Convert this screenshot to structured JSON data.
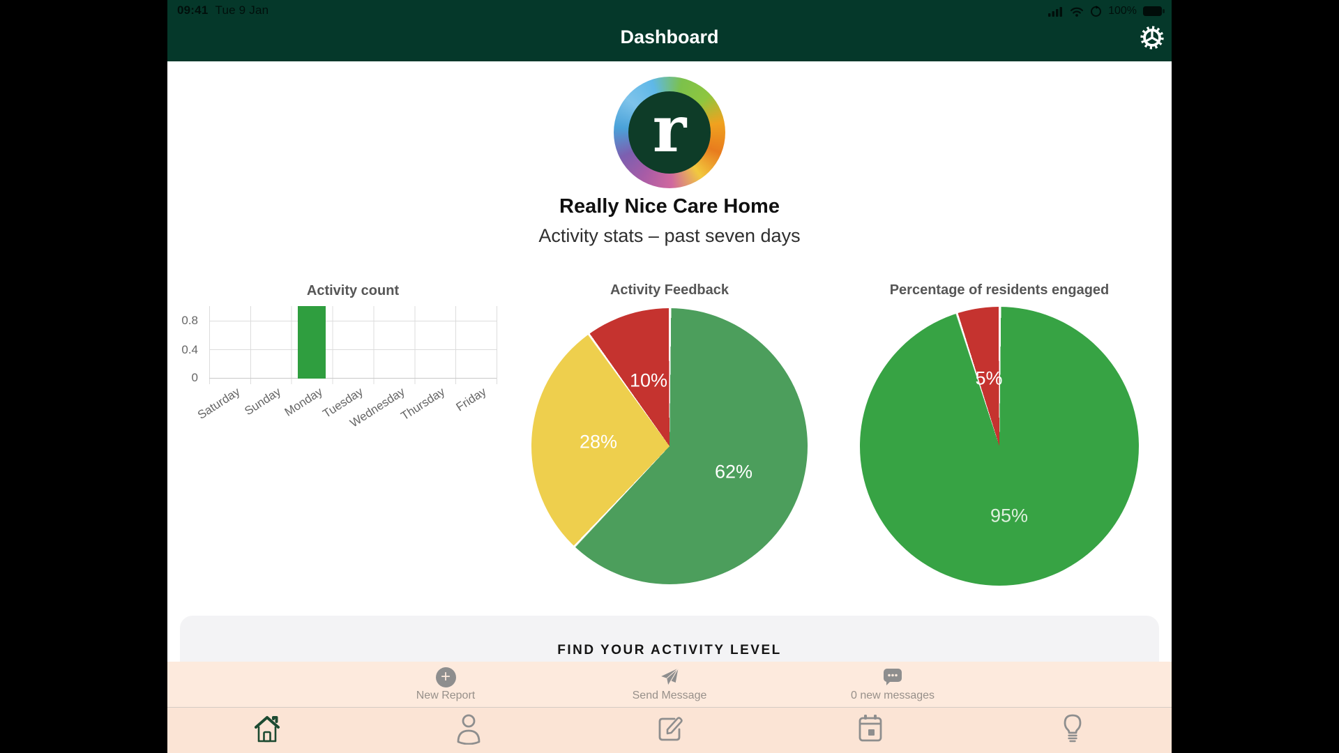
{
  "status_bar": {
    "time": "09:41",
    "date": "Tue 9 Jan",
    "battery_percent": "100%",
    "icons": [
      "cellular-signal-icon",
      "wifi-icon",
      "orientation-lock-icon",
      "battery-icon"
    ]
  },
  "header": {
    "title": "Dashboard",
    "settings_icon": "gear-icon"
  },
  "brand": {
    "logo_letter": "r",
    "name": "Really Nice Care Home",
    "subtitle": "Activity stats – past seven days"
  },
  "chart_data": [
    {
      "type": "bar",
      "title": "Activity count",
      "categories": [
        "Saturday",
        "Sunday",
        "Monday",
        "Tuesday",
        "Wednesday",
        "Thursday",
        "Friday"
      ],
      "values": [
        0,
        0,
        1,
        0,
        0,
        0,
        0
      ],
      "ylim": [
        0,
        1
      ],
      "yticks": [
        "0",
        "0.4",
        "0.8"
      ],
      "bar_color": "#2f9e3f",
      "grid": true,
      "xlabel": "",
      "ylabel": ""
    },
    {
      "type": "pie",
      "title": "Activity Feedback",
      "slices": [
        {
          "label": "62%",
          "value": 62,
          "color": "#4c9e5c"
        },
        {
          "label": "28%",
          "value": 28,
          "color": "#eecf4d"
        },
        {
          "label": "10%",
          "value": 10,
          "color": "#c5332f"
        }
      ],
      "start_angle_deg": 0,
      "direction": "clockwise"
    },
    {
      "type": "pie",
      "title": "Percentage of residents engaged",
      "slices": [
        {
          "label": "95%",
          "value": 95,
          "color": "#37a344"
        },
        {
          "label": "5%",
          "value": 5,
          "color": "#c5332f"
        }
      ],
      "start_angle_deg": 0,
      "direction": "clockwise"
    }
  ],
  "section": {
    "title": "FIND YOUR ACTIVITY LEVEL"
  },
  "action_bar": {
    "items": [
      {
        "label": "New Report",
        "icon": "plus-circle-icon"
      },
      {
        "label": "Send Message",
        "icon": "paper-plane-icon"
      },
      {
        "label": "0 new messages",
        "icon": "message-bubble-icon"
      }
    ]
  },
  "tab_bar": {
    "items": [
      {
        "icon": "home-icon",
        "active": true
      },
      {
        "icon": "person-icon",
        "active": false
      },
      {
        "icon": "compose-icon",
        "active": false
      },
      {
        "icon": "calendar-icon",
        "active": false
      },
      {
        "icon": "lightbulb-icon",
        "active": false
      }
    ]
  },
  "colors": {
    "header_green": "#05382a",
    "logo_center_green": "#0e3c28",
    "bar_green": "#2f9e3f",
    "pie1_green": "#4c9e5c",
    "pie_yellow": "#eecf4d",
    "pie_red": "#c5332f",
    "pie2_green": "#37a344",
    "action_bar_peach": "#fdeadd",
    "tab_bar_peach": "#fbe4d5",
    "card_gray": "#f3f3f5",
    "icon_gray": "#8e8e8e",
    "active_tab_green": "#1c4a31"
  }
}
